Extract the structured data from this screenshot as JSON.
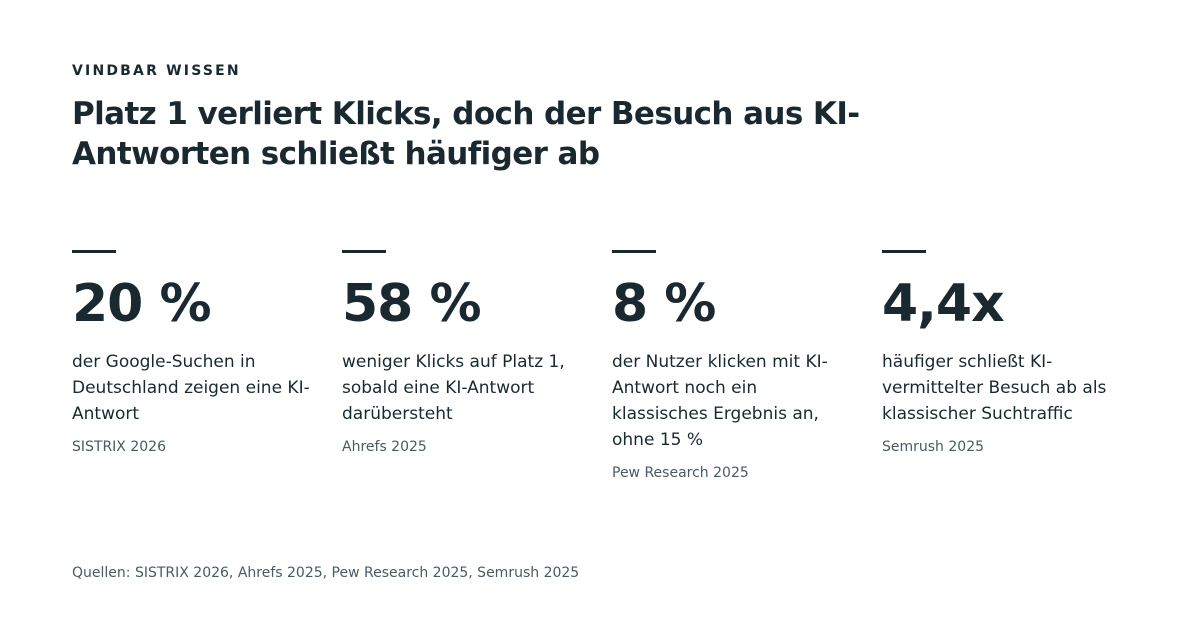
{
  "eyebrow": "VINDBAR WISSEN",
  "headline": "Platz 1 verliert Klicks, doch der Besuch aus KI-Antworten schließt häufiger ab",
  "stats": [
    {
      "value": "20 %",
      "description": "der Google-Suchen in Deutschland zeigen eine KI-Antwort",
      "source": "SISTRIX 2026"
    },
    {
      "value": "58 %",
      "description": "weniger Klicks auf Platz 1, sobald eine KI-Antwort darübersteht",
      "source": "Ahrefs 2025"
    },
    {
      "value": "8 %",
      "description": "der Nutzer klicken mit KI-Antwort noch ein klassisches Ergebnis an, ohne 15 %",
      "source": "Pew Research 2025"
    },
    {
      "value": "4,4x",
      "description": "häufiger schließt KI-vermittelter Besuch ab als klassischer Suchtraffic",
      "source": "Semrush 2025"
    }
  ],
  "footer": "Quellen: SISTRIX 2026, Ahrefs 2025, Pew Research 2025, Semrush 2025"
}
